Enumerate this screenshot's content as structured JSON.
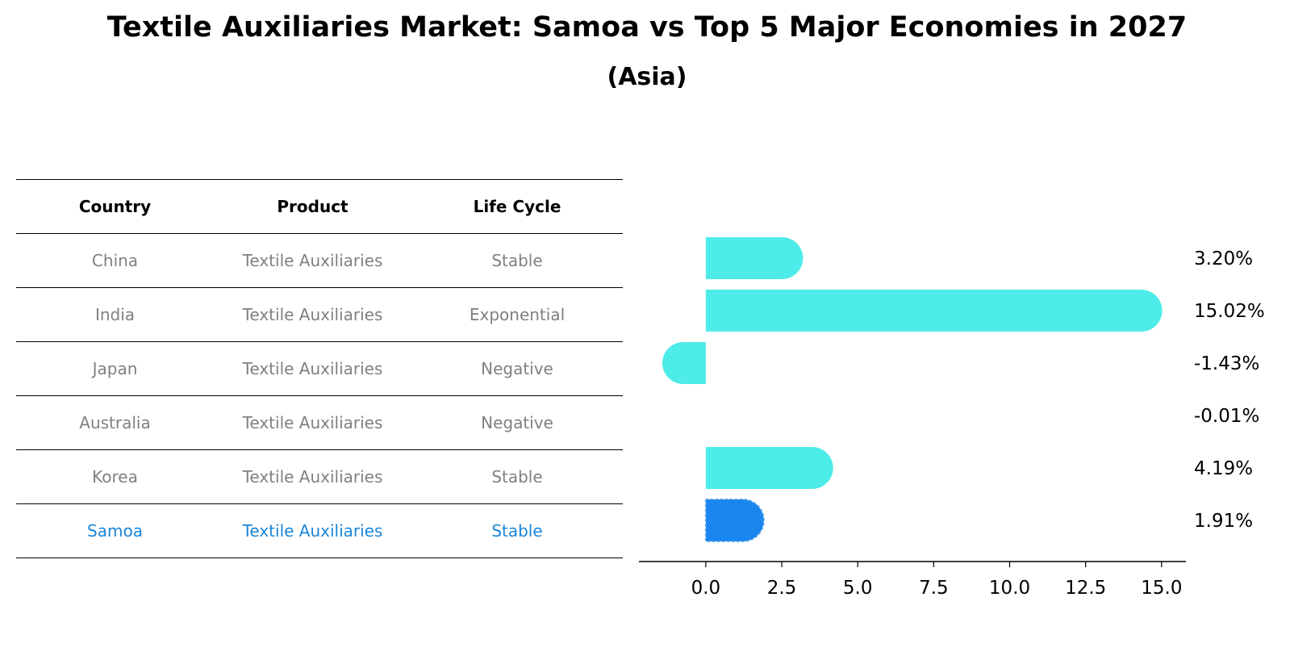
{
  "title": "Textile Auxiliaries Market: Samoa vs Top 5 Major Economies in 2027",
  "subtitle": "(Asia)",
  "table": {
    "headers": [
      "Country",
      "Product",
      "Life Cycle"
    ],
    "rows": [
      {
        "country": "China",
        "product": "Textile Auxiliaries",
        "life_cycle": "Stable"
      },
      {
        "country": "India",
        "product": "Textile Auxiliaries",
        "life_cycle": "Exponential"
      },
      {
        "country": "Japan",
        "product": "Textile Auxiliaries",
        "life_cycle": "Negative"
      },
      {
        "country": "Australia",
        "product": "Textile Auxiliaries",
        "life_cycle": "Negative"
      },
      {
        "country": "Korea",
        "product": "Textile Auxiliaries",
        "life_cycle": "Stable"
      },
      {
        "country": "Samoa",
        "product": "Textile Auxiliaries",
        "life_cycle": "Stable"
      }
    ],
    "highlight_row": 5
  },
  "chart_data": {
    "type": "bar",
    "orientation": "horizontal",
    "categories": [
      "China",
      "India",
      "Japan",
      "Australia",
      "Korea",
      "Samoa"
    ],
    "values": [
      3.2,
      15.02,
      -1.43,
      -0.01,
      4.19,
      1.91
    ],
    "value_labels": [
      "3.20%",
      "15.02%",
      "-1.43%",
      "-0.01%",
      "4.19%",
      "1.91%"
    ],
    "xlim": [
      -2.2,
      15.8
    ],
    "xticks": [
      0.0,
      2.5,
      5.0,
      7.5,
      10.0,
      12.5,
      15.0
    ],
    "xtick_labels": [
      "0.0",
      "2.5",
      "5.0",
      "7.5",
      "10.0",
      "12.5",
      "15.0"
    ],
    "colors": {
      "default": "#4dece9",
      "highlight": "#1a86f0"
    },
    "highlight_index": 5
  }
}
